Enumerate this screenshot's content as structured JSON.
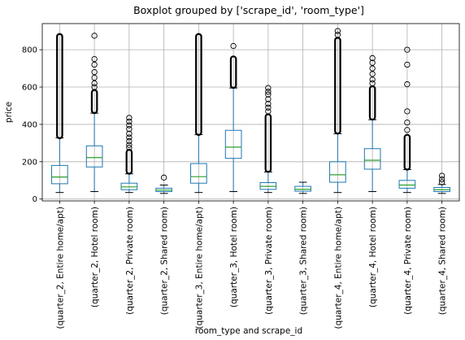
{
  "chart_data": {
    "type": "boxplot",
    "title": "Boxplot grouped by ['scrape_id', 'room_type']",
    "xlabel": "room_type and scrape_id",
    "ylabel": "price",
    "ylim": [
      -10,
      940
    ],
    "yticks": [
      0,
      200,
      400,
      600,
      800
    ],
    "grid": true,
    "colors": {
      "box": "#1f77b4",
      "median": "#2ca02c",
      "flier": "#000000",
      "grid": "#b0b0b0"
    },
    "categories": [
      "(quarter_2, Entire home/apt)",
      "(quarter_2, Hotel room)",
      "(quarter_2, Private room)",
      "(quarter_2, Shared room)",
      "(quarter_3, Entire home/apt)",
      "(quarter_3, Hotel room)",
      "(quarter_3, Private room)",
      "(quarter_3, Shared room)",
      "(quarter_4, Entire home/apt)",
      "(quarter_4, Hotel room)",
      "(quarter_4, Private room)",
      "(quarter_4, Shared room)"
    ],
    "boxes": [
      {
        "whisker_low": 35,
        "q1": 82,
        "median": 118,
        "q3": 180,
        "whisker_high": 328,
        "outlier_band": [
          330,
          880
        ],
        "outliers": []
      },
      {
        "whisker_low": 40,
        "q1": 172,
        "median": 222,
        "q3": 285,
        "whisker_high": 460,
        "outlier_band": [
          465,
          580
        ],
        "outliers": [
          600,
          620,
          650,
          680,
          720,
          750,
          875
        ]
      },
      {
        "whisker_low": 35,
        "q1": 50,
        "median": 65,
        "q3": 85,
        "whisker_high": 135,
        "outlier_band": [
          140,
          260
        ],
        "outliers": [
          275,
          290,
          310,
          330,
          350,
          375,
          395,
          415,
          435
        ]
      },
      {
        "whisker_low": 30,
        "q1": 40,
        "median": 48,
        "q3": 58,
        "whisker_high": 75,
        "outlier_band": [],
        "outliers": [
          115
        ]
      },
      {
        "whisker_low": 35,
        "q1": 85,
        "median": 120,
        "q3": 190,
        "whisker_high": 345,
        "outlier_band": [
          348,
          880
        ],
        "outliers": []
      },
      {
        "whisker_low": 40,
        "q1": 218,
        "median": 278,
        "q3": 368,
        "whisker_high": 595,
        "outlier_band": [
          600,
          760
        ],
        "outliers": [
          820
        ]
      },
      {
        "whisker_low": 35,
        "q1": 52,
        "median": 68,
        "q3": 88,
        "whisker_high": 145,
        "outlier_band": [
          150,
          450
        ],
        "outliers": [
          470,
          490,
          510,
          535,
          560,
          575,
          595
        ]
      },
      {
        "whisker_low": 30,
        "q1": 42,
        "median": 52,
        "q3": 68,
        "whisker_high": 90,
        "outlier_band": [],
        "outliers": []
      },
      {
        "whisker_low": 35,
        "q1": 90,
        "median": 130,
        "q3": 200,
        "whisker_high": 350,
        "outlier_band": [
          355,
          860
        ],
        "outliers": [
          880,
          900
        ]
      },
      {
        "whisker_low": 40,
        "q1": 160,
        "median": 208,
        "q3": 270,
        "whisker_high": 425,
        "outlier_band": [
          430,
          600
        ],
        "outliers": [
          620,
          640,
          670,
          700,
          730,
          755
        ]
      },
      {
        "whisker_low": 35,
        "q1": 58,
        "median": 75,
        "q3": 100,
        "whisker_high": 158,
        "outlier_band": [
          162,
          340
        ],
        "outliers": [
          370,
          410,
          470,
          615,
          720,
          800
        ]
      },
      {
        "whisker_low": 30,
        "q1": 40,
        "median": 50,
        "q3": 62,
        "whisker_high": 78,
        "outlier_band": [],
        "outliers": [
          90,
          105,
          125
        ]
      }
    ]
  }
}
